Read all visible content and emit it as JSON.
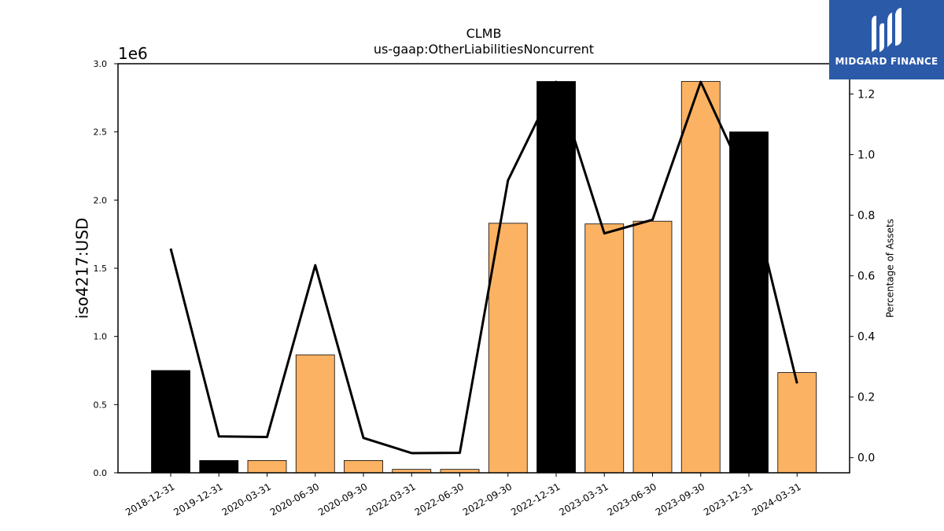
{
  "chart_data": {
    "type": "bar",
    "title": "CLMB",
    "subtitle": "us-gaap:OtherLiabilitiesNoncurrent",
    "ylabel": "iso4217:USD",
    "y_offset_label": "1e6",
    "y2label": "Percentage of Assets",
    "categories": [
      "2018-12-31",
      "2019-12-31",
      "2020-03-31",
      "2020-06-30",
      "2020-09-30",
      "2022-03-31",
      "2022-06-30",
      "2022-09-30",
      "2022-12-31",
      "2023-03-31",
      "2023-06-30",
      "2023-09-30",
      "2023-12-31",
      "2024-03-31"
    ],
    "series": [
      {
        "type": "bar",
        "values": [
          750000,
          90000,
          90000,
          865000,
          90000,
          25000,
          25000,
          1830000,
          2870000,
          1825000,
          1845000,
          2870000,
          2500000,
          735000
        ],
        "colors": [
          "#000000",
          "#000000",
          "#fbb263",
          "#fbb263",
          "#fbb263",
          "#fbb263",
          "#fbb263",
          "#fbb263",
          "#000000",
          "#fbb263",
          "#fbb263",
          "#fbb263",
          "#000000",
          "#fbb263"
        ]
      },
      {
        "type": "line",
        "axis": "right",
        "color": "#000000",
        "values": [
          0.69,
          0.07,
          0.068,
          0.635,
          0.065,
          0.015,
          0.016,
          0.915,
          1.24,
          0.74,
          0.785,
          1.24,
          0.895,
          0.245
        ]
      }
    ],
    "ylim": [
      0,
      3000000
    ],
    "y_ticks": [
      "0.0",
      "0.5",
      "1.0",
      "1.5",
      "2.0",
      "2.5",
      "3.0"
    ],
    "y2lim": [
      -0.05,
      1.3
    ],
    "y2_ticks": [
      "0.0",
      "0.2",
      "0.4",
      "0.6",
      "0.8",
      "1.0",
      "1.2"
    ],
    "grid": false,
    "legend": "none"
  },
  "logo": {
    "text": "MIDGARD FINANCE"
  }
}
